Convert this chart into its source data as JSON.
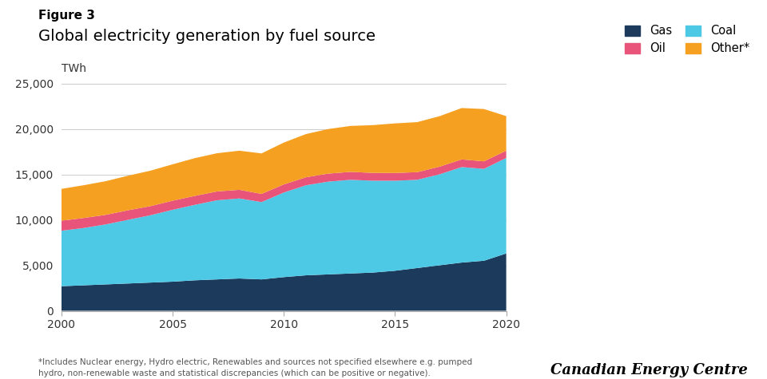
{
  "title_label": "Figure 3",
  "title": "Global electricity generation by fuel source",
  "ylabel": "TWh",
  "years": [
    2000,
    2001,
    2002,
    2003,
    2004,
    2005,
    2006,
    2007,
    2008,
    2009,
    2010,
    2011,
    2012,
    2013,
    2014,
    2015,
    2016,
    2017,
    2018,
    2019,
    2020
  ],
  "gas": [
    2700,
    2800,
    2900,
    3000,
    3100,
    3200,
    3350,
    3450,
    3550,
    3450,
    3700,
    3900,
    4000,
    4100,
    4200,
    4400,
    4700,
    5000,
    5300,
    5500,
    6300
  ],
  "coal": [
    6100,
    6300,
    6600,
    7000,
    7400,
    7900,
    8300,
    8700,
    8800,
    8500,
    9300,
    9900,
    10200,
    10300,
    10100,
    9900,
    9700,
    10000,
    10500,
    10100,
    10500
  ],
  "oil": [
    1100,
    1100,
    1050,
    1050,
    1000,
    1000,
    980,
    970,
    950,
    900,
    890,
    880,
    880,
    870,
    860,
    850,
    840,
    840,
    840,
    830,
    800
  ],
  "other": [
    3500,
    3600,
    3700,
    3800,
    3900,
    4000,
    4150,
    4200,
    4300,
    4450,
    4600,
    4750,
    4900,
    5050,
    5250,
    5450,
    5500,
    5550,
    5650,
    5750,
    3800
  ],
  "gas_color": "#1b3a5c",
  "coal_color": "#4dc9e6",
  "oil_color": "#e8547a",
  "other_color": "#f5a020",
  "background_color": "#ffffff",
  "ylim": [
    0,
    25000
  ],
  "yticks": [
    0,
    5000,
    10000,
    15000,
    20000,
    25000
  ],
  "footnote": "*Includes Nuclear energy, Hydro electric, Renewables and sources not specified elsewhere e.g. pumped\nhydro, non-renewable waste and statistical discrepancies (which can be positive or negative).",
  "branding": "Canadian Energy Centre"
}
